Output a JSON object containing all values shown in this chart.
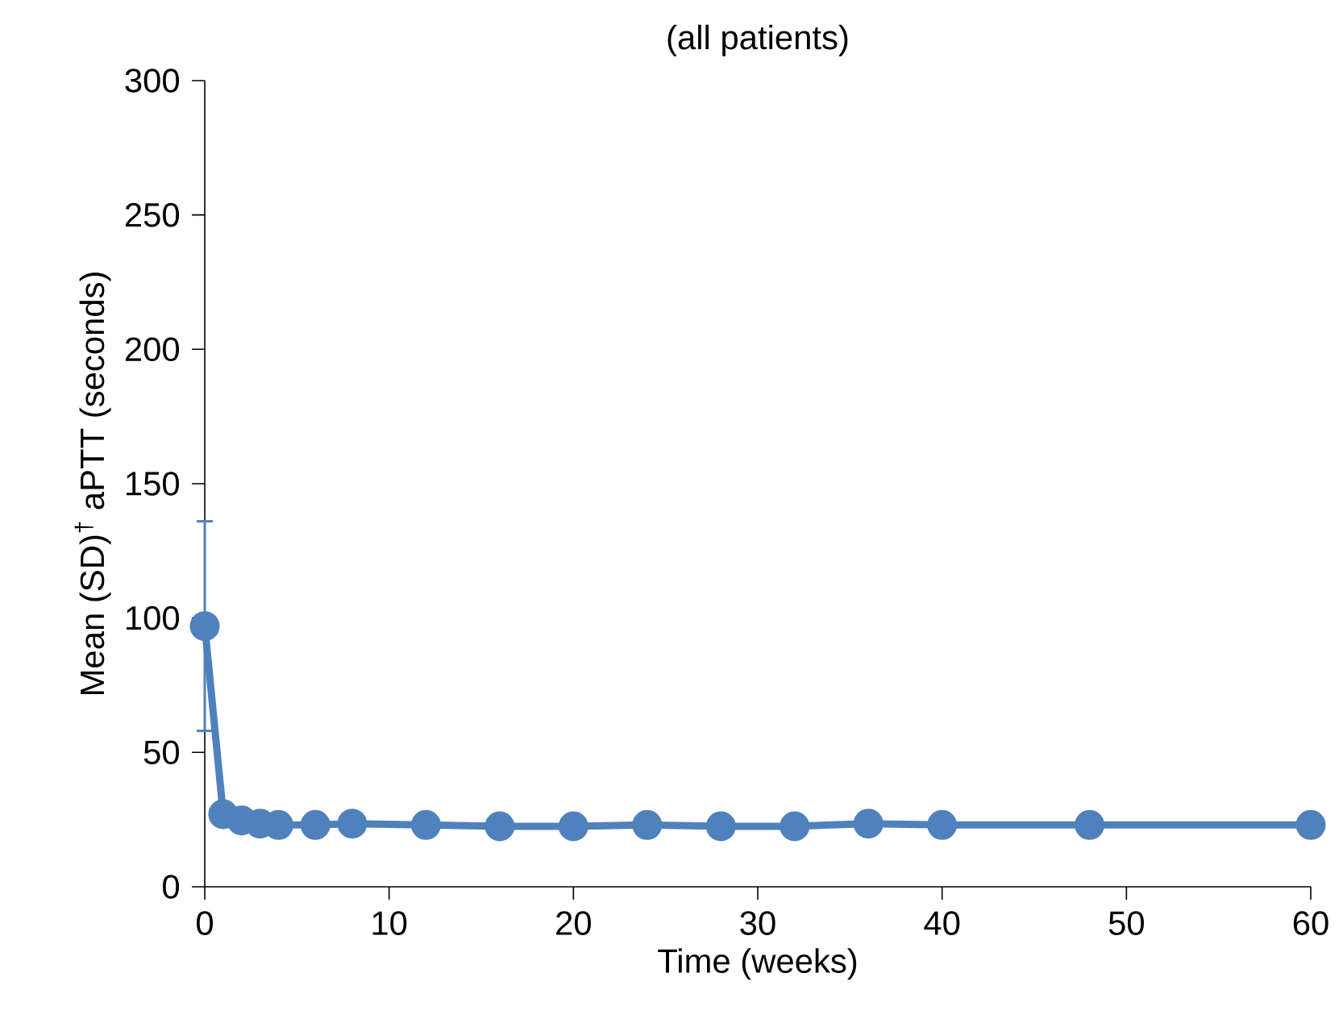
{
  "chart_data": {
    "type": "line",
    "title": "(all patients)",
    "xlabel": "Time (weeks)",
    "ylabel": "Mean (SD)$^{†}$ aPTT (seconds)",
    "x": [
      0,
      1,
      2,
      3,
      4,
      6,
      8,
      12,
      16,
      20,
      24,
      28,
      32,
      36,
      40,
      48,
      60
    ],
    "series": [
      {
        "color": "#4f81bd",
        "values": [
          97,
          27,
          24.7,
          23.5,
          23,
          23,
          23.5,
          23,
          22.5,
          22.5,
          23,
          22.5,
          22.5,
          23.5,
          23,
          23,
          23
        ],
        "errors": [
          [
            58,
            136
          ],
          null,
          null,
          null,
          null,
          null,
          null,
          null,
          null,
          null,
          null,
          null,
          null,
          null,
          null,
          null,
          null
        ]
      }
    ],
    "xlim": [
      0,
      60
    ],
    "xticks": [
      0,
      10,
      20,
      30,
      40,
      50,
      60
    ],
    "ylim": [
      0,
      300
    ],
    "yticks": [
      0,
      50,
      100,
      150,
      200,
      250,
      300
    ],
    "grid": false,
    "marker": "circle",
    "line_style": "solid"
  }
}
